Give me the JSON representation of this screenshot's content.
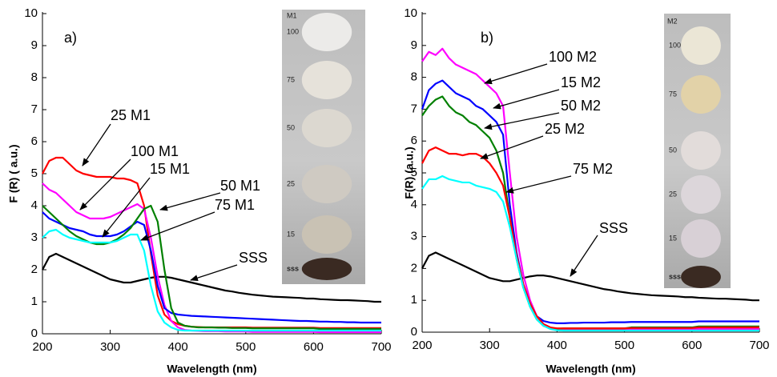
{
  "chart_data": [
    {
      "type": "line",
      "panel_label": "a)",
      "x_label": "Wavelength (nm)",
      "y_label": "F (R) ( a.u.)",
      "xlim": [
        200,
        700
      ],
      "xticks": [
        200,
        300,
        400,
        500,
        600,
        700
      ],
      "ylim": [
        0,
        10
      ],
      "yticks": [
        0,
        1,
        2,
        3,
        4,
        5,
        6,
        7,
        8,
        9,
        10
      ],
      "inset": {
        "title": "M1",
        "labels": [
          "100",
          "75",
          "50",
          "25",
          "15",
          "sss"
        ]
      },
      "x": [
        200,
        210,
        220,
        230,
        240,
        250,
        260,
        270,
        280,
        290,
        300,
        310,
        320,
        330,
        340,
        350,
        360,
        370,
        380,
        390,
        400,
        410,
        420,
        430,
        440,
        450,
        460,
        470,
        480,
        490,
        500,
        510,
        520,
        530,
        540,
        550,
        560,
        570,
        580,
        590,
        600,
        610,
        620,
        630,
        640,
        650,
        660,
        670,
        680,
        690,
        700
      ],
      "series": [
        {
          "name": "SSS",
          "color": "#000000",
          "values": [
            2.0,
            2.4,
            2.5,
            2.4,
            2.3,
            2.2,
            2.1,
            2.0,
            1.9,
            1.8,
            1.7,
            1.65,
            1.6,
            1.6,
            1.65,
            1.7,
            1.75,
            1.78,
            1.78,
            1.75,
            1.7,
            1.65,
            1.6,
            1.55,
            1.5,
            1.45,
            1.4,
            1.35,
            1.32,
            1.28,
            1.25,
            1.22,
            1.2,
            1.18,
            1.16,
            1.15,
            1.14,
            1.13,
            1.12,
            1.1,
            1.1,
            1.08,
            1.07,
            1.06,
            1.05,
            1.05,
            1.04,
            1.03,
            1.02,
            1.0,
            1.0
          ]
        },
        {
          "name": "25 M1",
          "color": "#ff0000",
          "values": [
            5.0,
            5.4,
            5.5,
            5.5,
            5.3,
            5.1,
            5.0,
            4.95,
            4.9,
            4.9,
            4.9,
            4.85,
            4.85,
            4.8,
            4.7,
            4.0,
            2.5,
            1.2,
            0.6,
            0.4,
            0.3,
            0.25,
            0.22,
            0.21,
            0.2,
            0.2,
            0.2,
            0.2,
            0.2,
            0.2,
            0.2,
            0.19,
            0.19,
            0.19,
            0.19,
            0.19,
            0.19,
            0.19,
            0.19,
            0.19,
            0.19,
            0.18,
            0.18,
            0.18,
            0.18,
            0.18,
            0.18,
            0.18,
            0.18,
            0.18,
            0.18
          ]
        },
        {
          "name": "100 M1",
          "color": "#ff00ff",
          "values": [
            4.7,
            4.5,
            4.4,
            4.2,
            4.0,
            3.8,
            3.7,
            3.6,
            3.6,
            3.6,
            3.65,
            3.75,
            3.85,
            3.95,
            4.05,
            3.9,
            3.0,
            1.8,
            0.9,
            0.4,
            0.2,
            0.12,
            0.1,
            0.09,
            0.08,
            0.08,
            0.08,
            0.07,
            0.07,
            0.07,
            0.07,
            0.06,
            0.06,
            0.06,
            0.06,
            0.06,
            0.06,
            0.06,
            0.06,
            0.06,
            0.06,
            0.05,
            0.05,
            0.05,
            0.05,
            0.05,
            0.05,
            0.05,
            0.05,
            0.05,
            0.05
          ]
        },
        {
          "name": "15 M1",
          "color": "#0000ff",
          "values": [
            3.8,
            3.6,
            3.5,
            3.4,
            3.3,
            3.25,
            3.2,
            3.1,
            3.05,
            3.05,
            3.05,
            3.1,
            3.2,
            3.35,
            3.5,
            3.4,
            2.6,
            1.5,
            0.8,
            0.65,
            0.6,
            0.58,
            0.56,
            0.55,
            0.54,
            0.53,
            0.52,
            0.51,
            0.5,
            0.49,
            0.48,
            0.47,
            0.46,
            0.45,
            0.44,
            0.43,
            0.42,
            0.41,
            0.4,
            0.4,
            0.39,
            0.38,
            0.38,
            0.37,
            0.37,
            0.36,
            0.36,
            0.35,
            0.35,
            0.35,
            0.35
          ]
        },
        {
          "name": "50 M1",
          "color": "#008000",
          "values": [
            4.0,
            3.8,
            3.6,
            3.4,
            3.2,
            3.05,
            2.95,
            2.85,
            2.8,
            2.8,
            2.85,
            2.95,
            3.1,
            3.3,
            3.6,
            3.9,
            4.0,
            3.5,
            2.0,
            0.8,
            0.35,
            0.25,
            0.22,
            0.2,
            0.2,
            0.2,
            0.19,
            0.19,
            0.18,
            0.18,
            0.18,
            0.17,
            0.17,
            0.17,
            0.17,
            0.17,
            0.17,
            0.17,
            0.17,
            0.17,
            0.17,
            0.15,
            0.15,
            0.15,
            0.15,
            0.15,
            0.15,
            0.15,
            0.15,
            0.15,
            0.15
          ]
        },
        {
          "name": "75 M1",
          "color": "#00ffff",
          "values": [
            3.0,
            3.2,
            3.25,
            3.1,
            3.0,
            2.95,
            2.9,
            2.85,
            2.85,
            2.85,
            2.85,
            2.9,
            3.0,
            3.1,
            3.1,
            2.6,
            1.5,
            0.7,
            0.35,
            0.2,
            0.12,
            0.1,
            0.1,
            0.1,
            0.1,
            0.1,
            0.1,
            0.1,
            0.1,
            0.1,
            0.1,
            0.1,
            0.1,
            0.1,
            0.1,
            0.1,
            0.1,
            0.1,
            0.1,
            0.1,
            0.1,
            0.1,
            0.1,
            0.1,
            0.1,
            0.1,
            0.1,
            0.1,
            0.1,
            0.1,
            0.1
          ]
        }
      ]
    },
    {
      "type": "line",
      "panel_label": "b)",
      "x_label": "Wavelength (nm)",
      "y_label": "F(R) (a.u.)",
      "xlim": [
        200,
        700
      ],
      "xticks": [
        200,
        300,
        400,
        500,
        600,
        700
      ],
      "ylim": [
        0,
        10
      ],
      "yticks": [
        0,
        1,
        2,
        3,
        4,
        5,
        6,
        7,
        8,
        9,
        10
      ],
      "inset": {
        "title": "M2",
        "labels": [
          "100",
          "75",
          "50",
          "25",
          "15",
          "sss"
        ]
      },
      "x": [
        200,
        210,
        220,
        230,
        240,
        250,
        260,
        270,
        280,
        290,
        300,
        310,
        320,
        330,
        340,
        350,
        360,
        370,
        380,
        390,
        400,
        410,
        420,
        430,
        440,
        450,
        460,
        470,
        480,
        490,
        500,
        510,
        520,
        530,
        540,
        550,
        560,
        570,
        580,
        590,
        600,
        610,
        620,
        630,
        640,
        650,
        660,
        670,
        680,
        690,
        700
      ],
      "series": [
        {
          "name": "SSS",
          "color": "#000000",
          "values": [
            2.0,
            2.4,
            2.5,
            2.4,
            2.3,
            2.2,
            2.1,
            2.0,
            1.9,
            1.8,
            1.7,
            1.65,
            1.6,
            1.6,
            1.65,
            1.7,
            1.75,
            1.78,
            1.78,
            1.75,
            1.7,
            1.65,
            1.6,
            1.55,
            1.5,
            1.45,
            1.4,
            1.35,
            1.32,
            1.28,
            1.25,
            1.22,
            1.2,
            1.18,
            1.16,
            1.15,
            1.14,
            1.13,
            1.12,
            1.1,
            1.1,
            1.08,
            1.07,
            1.06,
            1.05,
            1.05,
            1.04,
            1.03,
            1.02,
            1.0,
            1.0
          ]
        },
        {
          "name": "100 M2",
          "color": "#ff00ff",
          "values": [
            8.5,
            8.8,
            8.7,
            8.9,
            8.6,
            8.4,
            8.3,
            8.2,
            8.1,
            7.9,
            7.7,
            7.5,
            7.1,
            5.0,
            3.0,
            1.8,
            1.0,
            0.5,
            0.25,
            0.15,
            0.1,
            0.1,
            0.1,
            0.1,
            0.1,
            0.1,
            0.1,
            0.1,
            0.1,
            0.1,
            0.1,
            0.1,
            0.1,
            0.1,
            0.1,
            0.1,
            0.1,
            0.1,
            0.1,
            0.1,
            0.1,
            0.1,
            0.1,
            0.1,
            0.1,
            0.1,
            0.1,
            0.1,
            0.1,
            0.1,
            0.1
          ]
        },
        {
          "name": "15 M2",
          "color": "#0000ff",
          "values": [
            7.0,
            7.6,
            7.8,
            7.9,
            7.7,
            7.5,
            7.4,
            7.3,
            7.1,
            7.0,
            6.8,
            6.6,
            6.2,
            4.0,
            2.5,
            1.5,
            0.9,
            0.5,
            0.35,
            0.3,
            0.28,
            0.28,
            0.29,
            0.29,
            0.3,
            0.3,
            0.3,
            0.3,
            0.31,
            0.31,
            0.31,
            0.32,
            0.32,
            0.32,
            0.32,
            0.32,
            0.32,
            0.32,
            0.32,
            0.32,
            0.32,
            0.34,
            0.34,
            0.34,
            0.34,
            0.34,
            0.34,
            0.34,
            0.34,
            0.34,
            0.34
          ]
        },
        {
          "name": "50 M2",
          "color": "#008000",
          "values": [
            6.8,
            7.1,
            7.3,
            7.4,
            7.1,
            6.9,
            6.8,
            6.6,
            6.5,
            6.3,
            6.1,
            5.7,
            5.0,
            3.6,
            2.3,
            1.4,
            0.8,
            0.4,
            0.2,
            0.12,
            0.1,
            0.12,
            0.12,
            0.12,
            0.12,
            0.12,
            0.12,
            0.12,
            0.12,
            0.12,
            0.12,
            0.15,
            0.15,
            0.15,
            0.15,
            0.15,
            0.15,
            0.15,
            0.15,
            0.15,
            0.15,
            0.18,
            0.18,
            0.18,
            0.18,
            0.18,
            0.18,
            0.18,
            0.18,
            0.18,
            0.18
          ]
        },
        {
          "name": "25 M2",
          "color": "#ff0000",
          "values": [
            5.3,
            5.7,
            5.8,
            5.7,
            5.6,
            5.6,
            5.55,
            5.6,
            5.6,
            5.5,
            5.3,
            5.0,
            4.6,
            3.6,
            2.4,
            1.5,
            0.9,
            0.5,
            0.25,
            0.15,
            0.12,
            0.12,
            0.12,
            0.12,
            0.12,
            0.12,
            0.12,
            0.12,
            0.12,
            0.12,
            0.12,
            0.13,
            0.13,
            0.13,
            0.13,
            0.13,
            0.13,
            0.13,
            0.13,
            0.13,
            0.13,
            0.15,
            0.15,
            0.15,
            0.15,
            0.15,
            0.15,
            0.15,
            0.15,
            0.15,
            0.15
          ]
        },
        {
          "name": "75 M2",
          "color": "#00ffff",
          "values": [
            4.5,
            4.8,
            4.8,
            4.9,
            4.8,
            4.75,
            4.7,
            4.7,
            4.6,
            4.55,
            4.5,
            4.4,
            4.1,
            3.3,
            2.3,
            1.4,
            0.8,
            0.4,
            0.2,
            0.1,
            0.06,
            0.05,
            0.05,
            0.05,
            0.05,
            0.05,
            0.05,
            0.05,
            0.05,
            0.05,
            0.05,
            0.05,
            0.05,
            0.05,
            0.05,
            0.05,
            0.05,
            0.05,
            0.05,
            0.05,
            0.05,
            0.05,
            0.05,
            0.05,
            0.05,
            0.05,
            0.05,
            0.05,
            0.05,
            0.05,
            0.05
          ]
        }
      ]
    }
  ]
}
